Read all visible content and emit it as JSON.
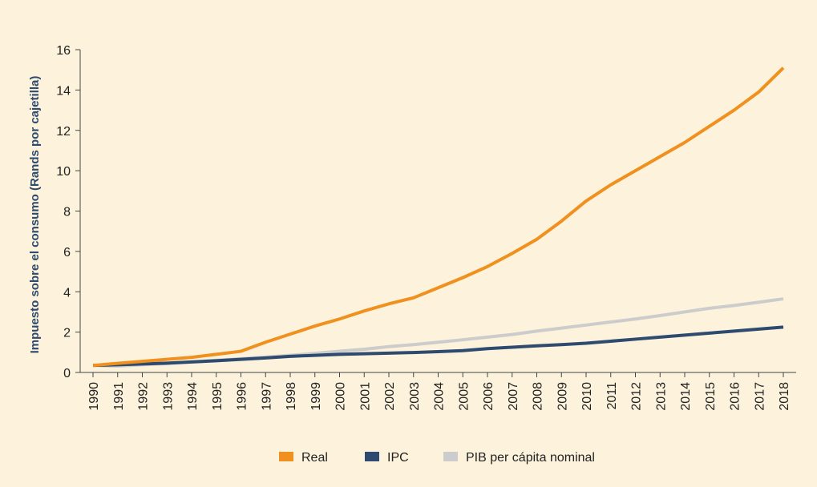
{
  "chart_data": {
    "type": "line",
    "y_label": "Impuesto sobre el consumo (Rands por cajetilla)",
    "categories": [
      "1990",
      "1991",
      "1992",
      "1993",
      "1994",
      "1995",
      "1996",
      "1997",
      "1998",
      "1999",
      "2000",
      "2001",
      "2002",
      "2003",
      "2004",
      "2005",
      "2006",
      "2007",
      "2008",
      "2009",
      "2010",
      "2011",
      "2012",
      "2013",
      "2014",
      "2015",
      "2016",
      "2017",
      "2018"
    ],
    "series": [
      {
        "name": "Real",
        "color": "#f0901e",
        "values": [
          0.35,
          0.45,
          0.55,
          0.65,
          0.75,
          0.9,
          1.05,
          1.5,
          1.9,
          2.3,
          2.65,
          3.05,
          3.4,
          3.7,
          4.2,
          4.7,
          5.25,
          5.9,
          6.6,
          7.5,
          8.5,
          9.3,
          10.0,
          10.7,
          11.4,
          12.2,
          13.0,
          13.9,
          15.1
        ]
      },
      {
        "name": "IPC",
        "color": "#2e4a6e",
        "values": [
          0.35,
          0.38,
          0.42,
          0.46,
          0.52,
          0.58,
          0.65,
          0.72,
          0.8,
          0.85,
          0.9,
          0.93,
          0.96,
          0.99,
          1.03,
          1.08,
          1.18,
          1.25,
          1.32,
          1.38,
          1.45,
          1.55,
          1.65,
          1.75,
          1.85,
          1.95,
          2.05,
          2.15,
          2.25
        ]
      },
      {
        "name": "PIB per cápita nominal",
        "color": "#cccccc",
        "values": [
          0.35,
          0.32,
          0.38,
          0.44,
          0.52,
          0.6,
          0.68,
          0.76,
          0.85,
          0.95,
          1.05,
          1.15,
          1.28,
          1.38,
          1.5,
          1.62,
          1.75,
          1.88,
          2.05,
          2.2,
          2.35,
          2.5,
          2.65,
          2.82,
          3.0,
          3.18,
          3.32,
          3.48,
          3.65
        ]
      }
    ],
    "ylim": [
      0,
      16
    ],
    "yticks": [
      0,
      2,
      4,
      6,
      8,
      10,
      12,
      14,
      16
    ],
    "grid": false,
    "legend": "bottom"
  }
}
